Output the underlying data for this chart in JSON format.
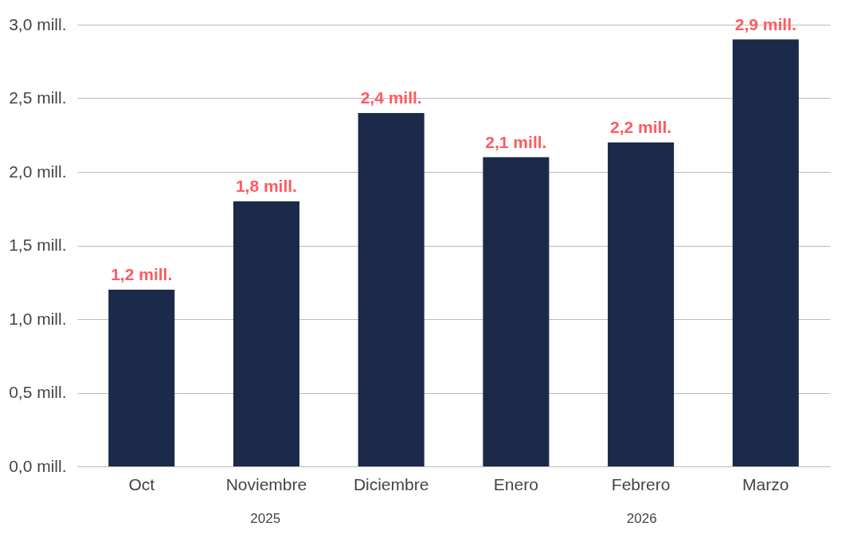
{
  "chart_data": {
    "type": "bar",
    "categories": [
      "Oct",
      "Noviembre",
      "Diciembre",
      "Enero",
      "Febrero",
      "Marzo"
    ],
    "values": [
      1.2,
      1.8,
      2.4,
      2.1,
      2.2,
      2.9
    ],
    "value_labels": [
      "1,2 mill.",
      "1,8 mill.",
      "2,4 mill.",
      "2,1 mill.",
      "2,2 mill.",
      "2,9 mill."
    ],
    "color": "#1b2a4a",
    "ylim": [
      0,
      3
    ],
    "yticks": [
      {
        "value": 0,
        "label": "0,0 mill."
      },
      {
        "value": 0.5,
        "label": "0,5 mill."
      },
      {
        "value": 1,
        "label": "1,0 mill."
      },
      {
        "value": 1.5,
        "label": "1,5 mill."
      },
      {
        "value": 2,
        "label": "2,0 mill."
      },
      {
        "value": 2.5,
        "label": "2,5 mill."
      },
      {
        "value": 3,
        "label": "3,0 mill."
      }
    ],
    "grid": "y",
    "annotations": [
      "2025",
      "2026"
    ]
  }
}
